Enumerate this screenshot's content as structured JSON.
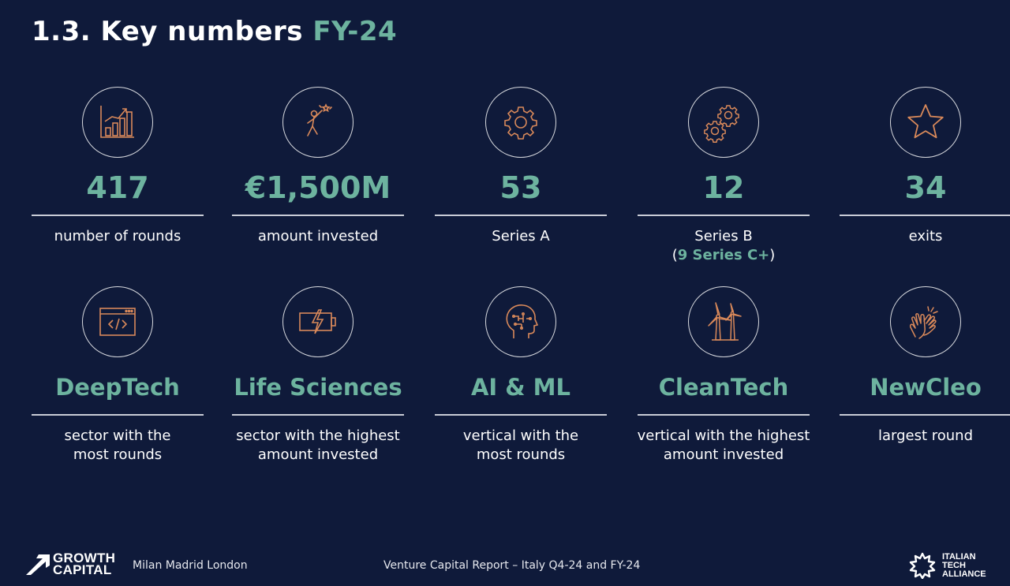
{
  "header": {
    "title_main": "1.3. Key numbers",
    "title_accent": "FY-24"
  },
  "colors": {
    "background": "#0f1a3a",
    "accent": "#6db39f",
    "icon": "#d9895a",
    "text": "#ffffff"
  },
  "row1": [
    {
      "icon": "bar-chart-icon",
      "value": "417",
      "label": "number of rounds"
    },
    {
      "icon": "reaching-star-icon",
      "value": "€1,500M",
      "label": "amount invested"
    },
    {
      "icon": "gear-icon",
      "value": "53",
      "label": "Series A"
    },
    {
      "icon": "gears-icon",
      "value": "12",
      "label": "Series B",
      "note_open": "(",
      "note_value": "9 Series C+",
      "note_close": ")"
    },
    {
      "icon": "star-icon",
      "value": "34",
      "label": "exits"
    }
  ],
  "row2": [
    {
      "icon": "code-window-icon",
      "value": "DeepTech",
      "label_line1": "sector with the",
      "label_line2": "most rounds"
    },
    {
      "icon": "battery-bolt-icon",
      "value": "Life Sciences",
      "label_line1": "sector with the highest",
      "label_line2": "amount invested"
    },
    {
      "icon": "ai-head-icon",
      "value": "AI & ML",
      "label_line1": "vertical with the",
      "label_line2": "most rounds"
    },
    {
      "icon": "wind-turbine-icon",
      "value": "CleanTech",
      "label_line1": "vertical with the highest",
      "label_line2": "amount invested"
    },
    {
      "icon": "clapping-hands-icon",
      "value": "NewCleo",
      "label_line1": "largest round",
      "label_line2": ""
    }
  ],
  "footer": {
    "logo_left_line1": "GROWTH",
    "logo_left_line2": "CAPITAL",
    "cities": "Milan Madrid London",
    "report": "Venture Capital Report – Italy Q4-24 and FY-24",
    "logo_right_line1": "ITALIAN",
    "logo_right_line2": "TECH",
    "logo_right_line3": "ALLIANCE"
  }
}
